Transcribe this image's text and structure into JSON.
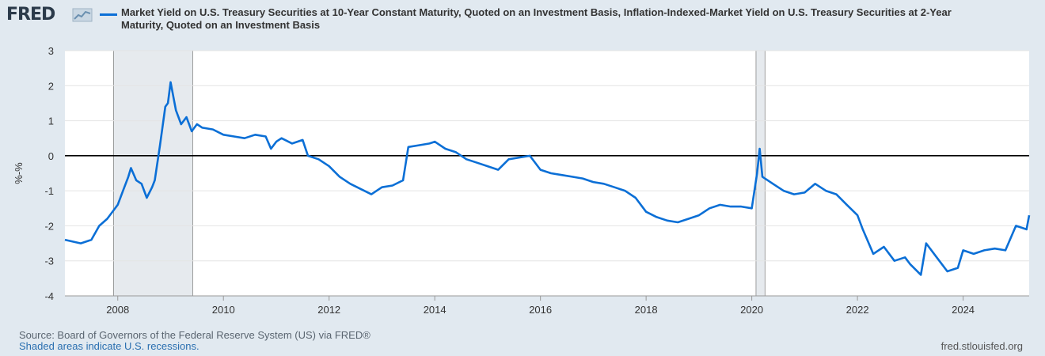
{
  "logo_text": "FRED",
  "logo_icon": "chart-line-icon",
  "colors": {
    "series": "#0b6fd6",
    "recession": "#e6eaee",
    "zero_line": "#000000",
    "background": "#e1e9f0",
    "plot": "#ffffff"
  },
  "chart_data": {
    "type": "line",
    "title": "Market Yield on U.S. Treasury Securities at 10-Year Constant Maturity, Quoted on an Investment Basis, Inflation-Indexed-Market Yield on U.S. Treasury Securities at 2-Year Maturity, Quoted on an Investment Basis",
    "title_lines": [
      "Market Yield on U.S. Treasury Securities at 10-Year Constant Maturity, Quoted on an Investment Basis, Inflation-Indexed-Market Yield on U.S. Treasury Securities at 2-Year",
      "Maturity, Quoted on an Investment Basis"
    ],
    "ylabel": "%-%",
    "ylim": [
      -4,
      3
    ],
    "xlim": [
      2007.0,
      2025.25
    ],
    "yticks": [
      "3",
      "2",
      "1",
      "0",
      "-1",
      "-2",
      "-3",
      "-4"
    ],
    "xticks": [
      "2008",
      "2010",
      "2012",
      "2014",
      "2016",
      "2018",
      "2020",
      "2022",
      "2024"
    ],
    "grid": true,
    "recessions": [
      [
        2007.92,
        2009.42
      ],
      [
        2020.08,
        2020.25
      ]
    ],
    "series": [
      {
        "x": [
          2007.0,
          2007.3,
          2007.5,
          2007.65,
          2007.8,
          2008.0,
          2008.1,
          2008.2,
          2008.25,
          2008.35,
          2008.45,
          2008.55,
          2008.65,
          2008.7,
          2008.8,
          2008.9,
          2008.95,
          2009.0,
          2009.1,
          2009.2,
          2009.3,
          2009.4,
          2009.5,
          2009.6,
          2009.8,
          2010.0,
          2010.2,
          2010.4,
          2010.6,
          2010.8,
          2010.9,
          2011.0,
          2011.1,
          2011.3,
          2011.5,
          2011.6,
          2011.8,
          2012.0,
          2012.2,
          2012.4,
          2012.6,
          2012.8,
          2013.0,
          2013.2,
          2013.4,
          2013.5,
          2013.7,
          2013.9,
          2014.0,
          2014.2,
          2014.4,
          2014.6,
          2014.8,
          2015.0,
          2015.2,
          2015.4,
          2015.6,
          2015.8,
          2016.0,
          2016.2,
          2016.4,
          2016.6,
          2016.8,
          2017.0,
          2017.2,
          2017.4,
          2017.6,
          2017.8,
          2018.0,
          2018.2,
          2018.4,
          2018.6,
          2018.8,
          2019.0,
          2019.2,
          2019.4,
          2019.6,
          2019.8,
          2020.0,
          2020.1,
          2020.15,
          2020.2,
          2020.4,
          2020.6,
          2020.8,
          2021.0,
          2021.2,
          2021.4,
          2021.6,
          2021.8,
          2022.0,
          2022.1,
          2022.3,
          2022.5,
          2022.7,
          2022.9,
          2023.0,
          2023.2,
          2023.3,
          2023.5,
          2023.7,
          2023.9,
          2024.0,
          2024.2,
          2024.4,
          2024.6,
          2024.8,
          2025.0,
          2025.2,
          2025.25
        ],
        "values": [
          -2.4,
          -2.5,
          -2.4,
          -2.0,
          -1.8,
          -1.4,
          -1.0,
          -0.6,
          -0.35,
          -0.7,
          -0.8,
          -1.2,
          -0.9,
          -0.7,
          0.3,
          1.4,
          1.5,
          2.1,
          1.3,
          0.9,
          1.1,
          0.7,
          0.9,
          0.8,
          0.75,
          0.6,
          0.55,
          0.5,
          0.6,
          0.55,
          0.2,
          0.4,
          0.5,
          0.35,
          0.45,
          0.0,
          -0.1,
          -0.3,
          -0.6,
          -0.8,
          -0.95,
          -1.1,
          -0.9,
          -0.85,
          -0.7,
          0.25,
          0.3,
          0.35,
          0.4,
          0.2,
          0.1,
          -0.1,
          -0.2,
          -0.3,
          -0.4,
          -0.1,
          -0.05,
          0.0,
          -0.4,
          -0.5,
          -0.55,
          -0.6,
          -0.65,
          -0.75,
          -0.8,
          -0.9,
          -1.0,
          -1.2,
          -1.6,
          -1.75,
          -1.85,
          -1.9,
          -1.8,
          -1.7,
          -1.5,
          -1.4,
          -1.45,
          -1.45,
          -1.5,
          -0.5,
          0.2,
          -0.6,
          -0.8,
          -1.0,
          -1.1,
          -1.05,
          -0.8,
          -1.0,
          -1.1,
          -1.4,
          -1.7,
          -2.1,
          -2.8,
          -2.6,
          -3.0,
          -2.9,
          -3.1,
          -3.4,
          -2.5,
          -2.9,
          -3.3,
          -3.2,
          -2.7,
          -2.8,
          -2.7,
          -2.65,
          -2.7,
          -2.0,
          -2.1,
          -1.7
        ]
      }
    ]
  },
  "footer": {
    "source": "Source: Board of Governors of the Federal Reserve System (US) via FRED®",
    "note": "Shaded areas indicate U.S. recessions.",
    "url": "fred.stlouisfed.org"
  }
}
